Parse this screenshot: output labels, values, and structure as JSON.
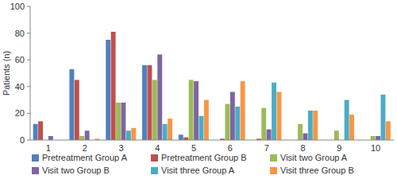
{
  "chart_data": {
    "type": "bar",
    "y_label": "Patients (n)",
    "categories": [
      "1",
      "2",
      "3",
      "4",
      "5",
      "6",
      "7",
      "8",
      "9",
      "10"
    ],
    "series": [
      {
        "name": "Pretreatment Group A",
        "color": "#4f81bd",
        "values": [
          12,
          53,
          75,
          56,
          4,
          0,
          0,
          0,
          0,
          0
        ]
      },
      {
        "name": "Pretreatment Group B",
        "color": "#c0504d",
        "values": [
          14,
          45,
          81,
          56,
          2,
          1,
          1,
          0,
          0,
          0
        ]
      },
      {
        "name": "Visit two Group A",
        "color": "#9bbb59",
        "values": [
          0,
          3,
          28,
          45,
          45,
          27,
          24,
          12,
          7,
          3
        ]
      },
      {
        "name": "Visit two Group B",
        "color": "#8064a2",
        "values": [
          3,
          7,
          28,
          64,
          44,
          36,
          8,
          5,
          0,
          3
        ]
      },
      {
        "name": "Visit three Group A",
        "color": "#4bacc6",
        "values": [
          0,
          0,
          7,
          12,
          18,
          25,
          43,
          22,
          30,
          34
        ]
      },
      {
        "name": "Visit three Group B",
        "color": "#f79646",
        "values": [
          0,
          1,
          9,
          16,
          30,
          44,
          36,
          22,
          19,
          14
        ]
      }
    ],
    "ylim": [
      0,
      100
    ],
    "yticks": [
      0,
      20,
      40,
      60,
      80,
      100
    ],
    "grid": false,
    "legend": "bottom"
  }
}
